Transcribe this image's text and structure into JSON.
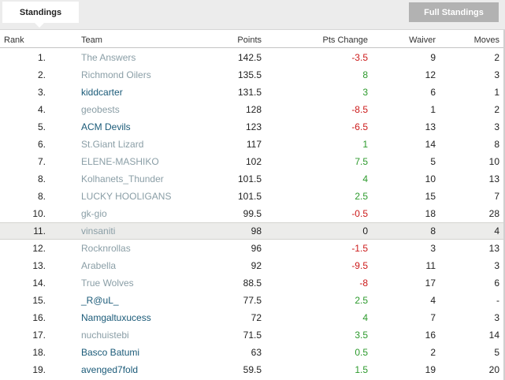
{
  "tabs": {
    "active_label": "Standings",
    "full_button_label": "Full Standings"
  },
  "columns": {
    "rank": "Rank",
    "team": "Team",
    "points": "Points",
    "change": "Pts Change",
    "waiver": "Waiver",
    "moves": "Moves"
  },
  "highlighted_row_index": 10,
  "colors": {
    "negative": "#cc1a1a",
    "positive": "#2c9a2c",
    "team_muted": "#8a9ea6",
    "team_link": "#1a5a78",
    "highlight": "#ececea"
  },
  "rows": [
    {
      "rank": "1.",
      "team": "The Answers",
      "points": "142.5",
      "change": "-3.5",
      "waiver": "9",
      "moves": "2",
      "style": "muted"
    },
    {
      "rank": "2.",
      "team": "Richmond Oilers",
      "points": "135.5",
      "change": "8",
      "waiver": "12",
      "moves": "3",
      "style": "muted"
    },
    {
      "rank": "3.",
      "team": "kiddcarter",
      "points": "131.5",
      "change": "3",
      "waiver": "6",
      "moves": "1",
      "style": "link"
    },
    {
      "rank": "4.",
      "team": "geobests",
      "points": "128",
      "change": "-8.5",
      "waiver": "1",
      "moves": "2",
      "style": "muted"
    },
    {
      "rank": "5.",
      "team": "ACM Devils",
      "points": "123",
      "change": "-6.5",
      "waiver": "13",
      "moves": "3",
      "style": "link"
    },
    {
      "rank": "6.",
      "team": "St.Giant Lizard",
      "points": "117",
      "change": "1",
      "waiver": "14",
      "moves": "8",
      "style": "muted"
    },
    {
      "rank": "7.",
      "team": "ELENE-MASHIKO",
      "points": "102",
      "change": "7.5",
      "waiver": "5",
      "moves": "10",
      "style": "muted"
    },
    {
      "rank": "8.",
      "team": "Kolhanets_Thunder",
      "points": "101.5",
      "change": "4",
      "waiver": "10",
      "moves": "13",
      "style": "muted"
    },
    {
      "rank": "8.",
      "team": "LUCKY HOOLIGANS",
      "points": "101.5",
      "change": "2.5",
      "waiver": "15",
      "moves": "7",
      "style": "muted"
    },
    {
      "rank": "10.",
      "team": "gk-gio",
      "points": "99.5",
      "change": "-0.5",
      "waiver": "18",
      "moves": "28",
      "style": "muted"
    },
    {
      "rank": "11.",
      "team": "vinsaniti",
      "points": "98",
      "change": "0",
      "waiver": "8",
      "moves": "4",
      "style": "muted"
    },
    {
      "rank": "12.",
      "team": "Rocknrollas",
      "points": "96",
      "change": "-1.5",
      "waiver": "3",
      "moves": "13",
      "style": "muted"
    },
    {
      "rank": "13.",
      "team": "Arabella",
      "points": "92",
      "change": "-9.5",
      "waiver": "11",
      "moves": "3",
      "style": "muted"
    },
    {
      "rank": "14.",
      "team": "True Wolves",
      "points": "88.5",
      "change": "-8",
      "waiver": "17",
      "moves": "6",
      "style": "muted"
    },
    {
      "rank": "15.",
      "team": "_R@uL_",
      "points": "77.5",
      "change": "2.5",
      "waiver": "4",
      "moves": "-",
      "style": "link"
    },
    {
      "rank": "16.",
      "team": "Namgaltuxucess",
      "points": "72",
      "change": "4",
      "waiver": "7",
      "moves": "3",
      "style": "link"
    },
    {
      "rank": "17.",
      "team": "nuchuistebi",
      "points": "71.5",
      "change": "3.5",
      "waiver": "16",
      "moves": "14",
      "style": "muted"
    },
    {
      "rank": "18.",
      "team": "Basco Batumi",
      "points": "63",
      "change": "0.5",
      "waiver": "2",
      "moves": "5",
      "style": "link"
    },
    {
      "rank": "19.",
      "team": "avenged7fold",
      "points": "59.5",
      "change": "1.5",
      "waiver": "19",
      "moves": "20",
      "style": "link"
    }
  ]
}
